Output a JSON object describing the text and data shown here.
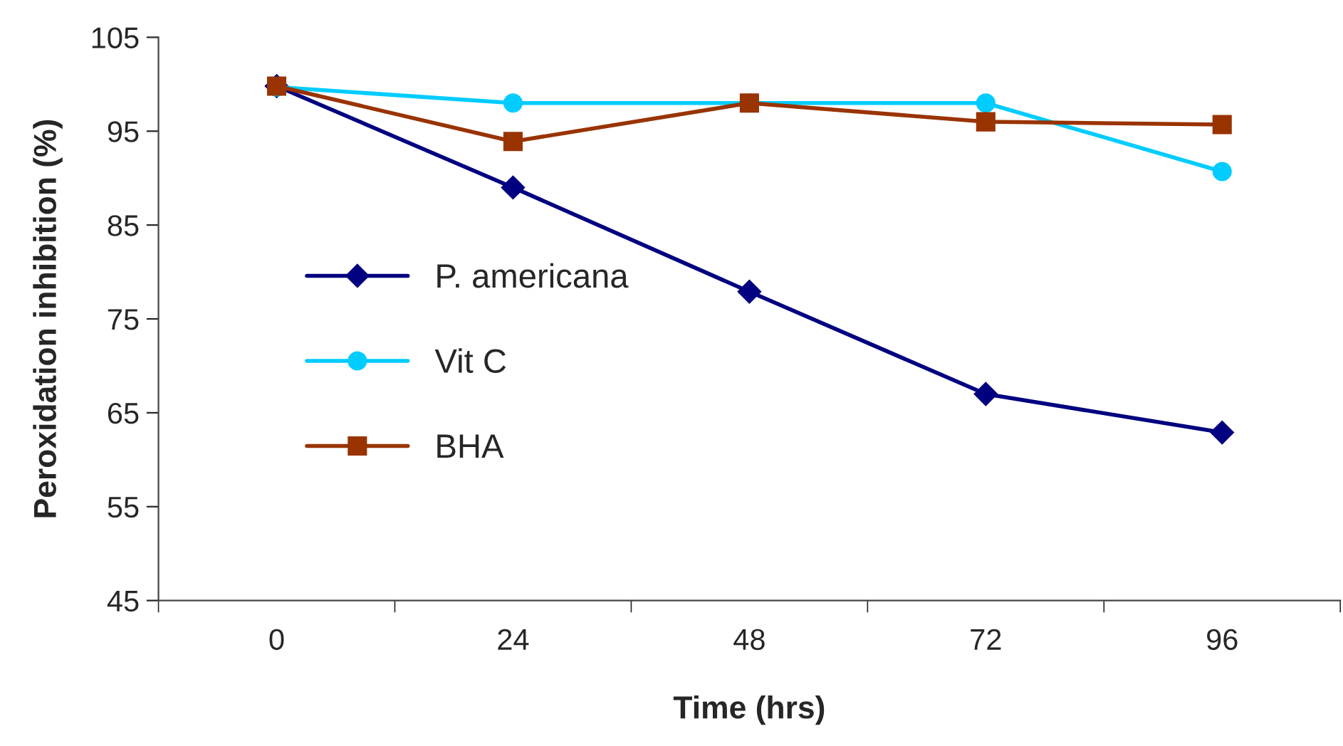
{
  "chart_data": {
    "type": "line",
    "xlabel": "Time (hrs)",
    "ylabel": "Peroxidation inhibition (%)",
    "categories": [
      "0",
      "24",
      "48",
      "72",
      "96"
    ],
    "series": [
      {
        "name": "P. americana",
        "color": "#000080",
        "marker": "diamond",
        "values": [
          99.8,
          89.0,
          77.9,
          67.0,
          62.9
        ]
      },
      {
        "name": "Vit C",
        "color": "#00ccff",
        "marker": "circle",
        "values": [
          99.7,
          98.0,
          98.0,
          98.0,
          90.7
        ]
      },
      {
        "name": "BHA",
        "color": "#993300",
        "marker": "square",
        "values": [
          99.8,
          93.9,
          98.0,
          96.0,
          95.7
        ]
      }
    ],
    "ylim": [
      45,
      105
    ],
    "yticks": [
      45,
      55,
      65,
      75,
      85,
      95,
      105
    ],
    "grid": false,
    "legend": "center left",
    "line_style": "solid"
  }
}
